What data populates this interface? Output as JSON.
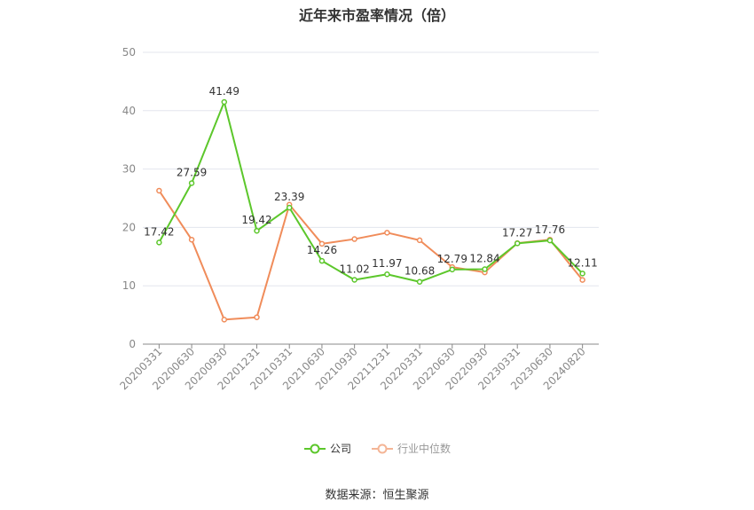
{
  "chart_data": {
    "type": "line",
    "title": "近年来市盈率情况（倍）",
    "categories": [
      "20200331",
      "20200630",
      "20200930",
      "20201231",
      "20210331",
      "20210630",
      "20210930",
      "20211231",
      "20220331",
      "20220630",
      "20220930",
      "20230331",
      "20230630",
      "20240820"
    ],
    "series": [
      {
        "name": "公司",
        "color": "#5cc72b",
        "values": [
          17.42,
          27.59,
          41.49,
          19.42,
          23.39,
          14.26,
          11.02,
          11.97,
          10.68,
          12.79,
          12.84,
          17.27,
          17.76,
          12.11
        ],
        "labels": [
          "17.42",
          "27.59",
          "41.49",
          "19.42",
          "23.39",
          "14.26",
          "11.02",
          "11.97",
          "10.68",
          "12.79",
          "12.84",
          "17.27",
          "17.76",
          "12.11"
        ]
      },
      {
        "name": "行业中位数",
        "color": "#f08c5a",
        "values": [
          26.3,
          17.9,
          4.2,
          4.6,
          23.9,
          17.2,
          18.0,
          19.1,
          17.8,
          13.2,
          12.3,
          17.3,
          17.9,
          11.0
        ]
      }
    ],
    "ylim": [
      0,
      50
    ],
    "yticks": [
      0,
      10,
      20,
      30,
      40,
      50
    ],
    "grid": true,
    "legend_position": "bottom"
  },
  "source_text": "数据来源：恒生聚源"
}
